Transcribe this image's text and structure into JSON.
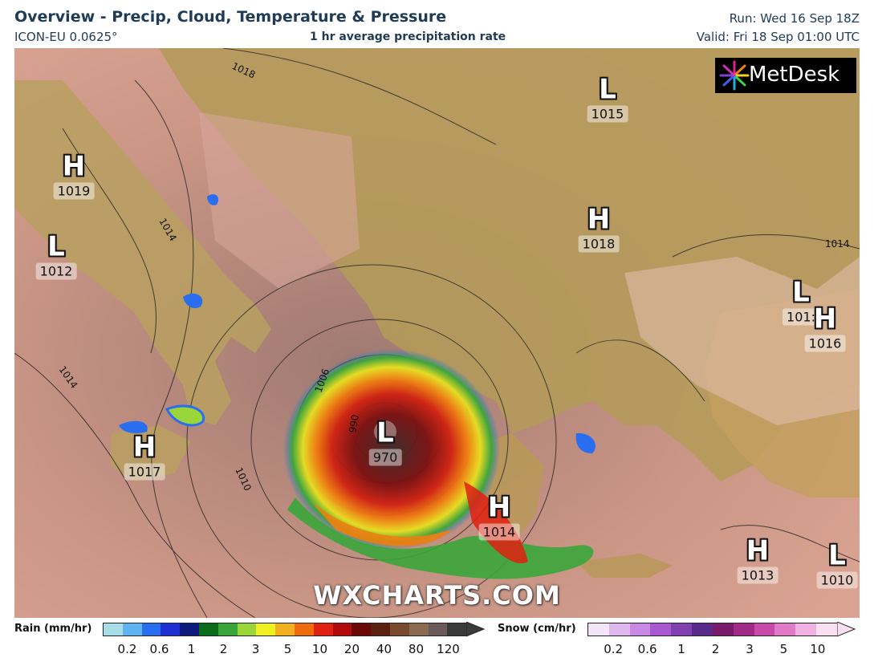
{
  "header": {
    "title": "Overview - Precip, Cloud, Temperature & Pressure",
    "model": "ICON-EU 0.0625°",
    "subtitle": "1 hr average precipitation rate",
    "run": "Run: Wed 16 Sep 18Z",
    "valid": "Valid: Fri 18 Sep 01:00 UTC"
  },
  "logo": {
    "text": "MetDesk",
    "icon": "metdesk-starburst-icon"
  },
  "watermark": "WXCHARTS.COM",
  "pressure_systems": [
    {
      "type": "H",
      "value": "1019"
    },
    {
      "type": "L",
      "value": "1012"
    },
    {
      "type": "L",
      "value": "1015"
    },
    {
      "type": "H",
      "value": "1018"
    },
    {
      "type": "L",
      "value": "101:"
    },
    {
      "type": "H",
      "value": "1016"
    },
    {
      "type": "H",
      "value": "1017"
    },
    {
      "type": "L",
      "value": "970"
    },
    {
      "type": "H",
      "value": "1014"
    },
    {
      "type": "H",
      "value": "1013"
    },
    {
      "type": "L",
      "value": "1010"
    }
  ],
  "isobar_labels": [
    "1018",
    "1014",
    "1014",
    "1006",
    "1010",
    "1014",
    "990"
  ],
  "legend": {
    "rain": {
      "title": "Rain (mm/hr)",
      "colors": [
        "#a8dde8",
        "#5fb3f0",
        "#2a6ef0",
        "#1c2fd0",
        "#0d1a7a",
        "#0a6b1a",
        "#3aa63a",
        "#9ad63a",
        "#f0f020",
        "#f0b020",
        "#f06a10",
        "#e02010",
        "#b00a0a",
        "#6a0808",
        "#5a2010",
        "#7a4a30",
        "#8a6a50",
        "#6a5a5a",
        "#3a3a3a"
      ],
      "ticks": [
        "0.2",
        "0.6",
        "1",
        "2",
        "3",
        "5",
        "10",
        "20",
        "40",
        "80",
        "120"
      ]
    },
    "snow": {
      "title": "Snow (cm/hr)",
      "colors": [
        "#f4e4f8",
        "#e0b8f0",
        "#c888e4",
        "#a858d0",
        "#8040b0",
        "#5a2a8a",
        "#7a1a6a",
        "#a02a88",
        "#c84aa8",
        "#e07ac8",
        "#f0b0e0",
        "#f8e0f0"
      ],
      "ticks": [
        "0.2",
        "0.6",
        "1",
        "2",
        "3",
        "5",
        "10"
      ]
    }
  }
}
